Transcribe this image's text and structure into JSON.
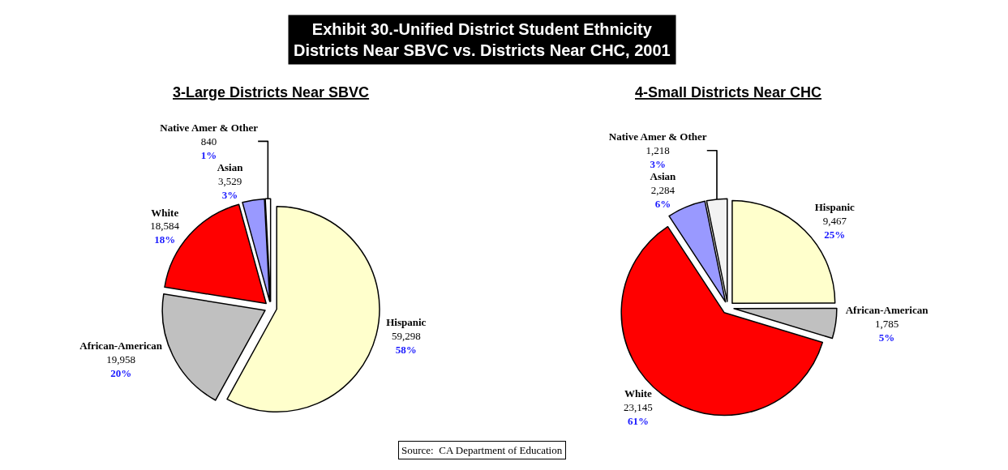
{
  "chart_data": [
    {
      "type": "other",
      "title": "Exhibit 30.-Unified District Student Ethnicity\nDistricts Near SBVC vs. Districts Near CHC, 2001",
      "annotations": [
        "Source:  CA Department of Education"
      ]
    },
    {
      "type": "pie",
      "title": "3-Large Districts Near SBVC",
      "categories": [
        "Hispanic",
        "African-American",
        "White",
        "Asian",
        "Native Amer & Other"
      ],
      "values": [
        59298,
        19958,
        18584,
        3529,
        840
      ],
      "value_labels": [
        "59,298\n58%",
        "19,958\n20%",
        "18,584\n18%",
        "3,529\n3%",
        "840\n1%"
      ],
      "colors": [
        "#ffffcc",
        "#c0c0c0",
        "#ff0000",
        "#9999ff",
        "#ffffff"
      ]
    },
    {
      "type": "pie",
      "title": "4-Small Districts Near CHC",
      "categories": [
        "Hispanic",
        "African-American",
        "White",
        "Asian",
        "Native Amer & Other"
      ],
      "values": [
        9467,
        1785,
        23145,
        2284,
        1218
      ],
      "value_labels": [
        "9,467\n25%",
        "1,785\n5%",
        "23,145\n61%",
        "2,284\n6%",
        "1,218\n3%"
      ],
      "colors": [
        "#ffffcc",
        "#c0c0c0",
        "#ff0000",
        "#9999ff",
        "#f2f2f2"
      ]
    }
  ]
}
